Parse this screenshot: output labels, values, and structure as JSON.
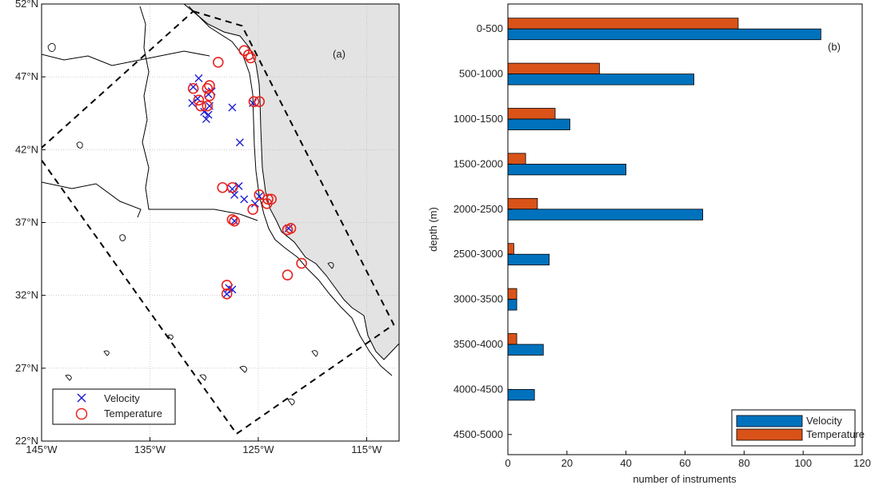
{
  "colors": {
    "velocity": "#0072BD",
    "temperature": "#D95319",
    "land": "#e3e3e3",
    "grid": "#b0b0b0",
    "marker_velocity": "#1f1fd6",
    "marker_temperature": "#e8231f"
  },
  "chart_data": [
    {
      "type": "scatter",
      "panel_label": "(a)",
      "xlim": [
        -145,
        -112
      ],
      "ylim": [
        22,
        52
      ],
      "x_ticks": [
        -145,
        -135,
        -125,
        -115
      ],
      "x_tick_labels": [
        "145°W",
        "135°W",
        "125°W",
        "115°W"
      ],
      "y_ticks": [
        22,
        27,
        32,
        37,
        42,
        47,
        52
      ],
      "y_tick_labels": [
        "22°N",
        "27°N",
        "32°N",
        "37°N",
        "42°N",
        "47°N",
        "52°N"
      ],
      "grid": true,
      "legend_position": "bottom-left",
      "domain_boundary": [
        [
          -131,
          51.5
        ],
        [
          -126.5,
          50.5
        ],
        [
          -112.5,
          30
        ],
        [
          -127,
          22.5
        ],
        [
          -145.5,
          41.8
        ]
      ],
      "series": [
        {
          "name": "Velocity",
          "marker": "x",
          "points": [
            [
              -131,
              46.3
            ],
            [
              -130.5,
              46.9
            ],
            [
              -130.6,
              45.5
            ],
            [
              -131.1,
              45.2
            ],
            [
              -130,
              44.6
            ],
            [
              -129.8,
              44.1
            ],
            [
              -129.6,
              44.4
            ],
            [
              -129.5,
              45.0
            ],
            [
              -129.6,
              45.8
            ],
            [
              -129.3,
              46.0
            ],
            [
              -127.4,
              44.9
            ],
            [
              -126.7,
              42.5
            ],
            [
              -126.3,
              38.6
            ],
            [
              -126.8,
              39.5
            ],
            [
              -127.4,
              39.3
            ],
            [
              -127.2,
              38.9
            ],
            [
              -127.2,
              37.1
            ],
            [
              -125.3,
              38.3
            ],
            [
              -124.9,
              38.8
            ],
            [
              -125.5,
              45.2
            ],
            [
              -127.7,
              32.5
            ],
            [
              -127.4,
              32.4
            ],
            [
              -127.9,
              32.1
            ],
            [
              -122.2,
              36.6
            ]
          ]
        },
        {
          "name": "Temperature",
          "marker": "o",
          "points": [
            [
              -128.7,
              48.0
            ],
            [
              -126.3,
              48.8
            ],
            [
              -125.9,
              48.5
            ],
            [
              -125.7,
              48.3
            ],
            [
              -129.5,
              46.4
            ],
            [
              -129.7,
              46.2
            ],
            [
              -129.5,
              45.7
            ],
            [
              -131,
              46.2
            ],
            [
              -130.5,
              45.4
            ],
            [
              -130.3,
              45.0
            ],
            [
              -129.7,
              45.0
            ],
            [
              -125.4,
              45.3
            ],
            [
              -124.9,
              45.3
            ],
            [
              -128.3,
              39.4
            ],
            [
              -127.4,
              39.4
            ],
            [
              -127.2,
              37.1
            ],
            [
              -127.4,
              37.2
            ],
            [
              -125.5,
              37.9
            ],
            [
              -124.9,
              38.9
            ],
            [
              -124.1,
              38.6
            ],
            [
              -123.8,
              38.6
            ],
            [
              -124.2,
              38.3
            ],
            [
              -122.3,
              36.5
            ],
            [
              -122.0,
              36.6
            ],
            [
              -122.3,
              33.4
            ],
            [
              -121.0,
              34.2
            ],
            [
              -127.9,
              32.7
            ],
            [
              -127.9,
              32.1
            ]
          ]
        }
      ]
    },
    {
      "type": "bar",
      "orientation": "horizontal",
      "panel_label": "(b)",
      "ylabel": "depth (m)",
      "xlabel": "number of instruments",
      "xlim": [
        0,
        120
      ],
      "x_ticks": [
        0,
        20,
        40,
        60,
        80,
        100,
        120
      ],
      "categories": [
        "0-500",
        "500-1000",
        "1000-1500",
        "1500-2000",
        "2000-2500",
        "2500-3000",
        "3000-3500",
        "3500-4000",
        "4000-4500",
        "4500-5000"
      ],
      "series": [
        {
          "name": "Velocity",
          "values": [
            106,
            63,
            21,
            40,
            66,
            14,
            3,
            12,
            9,
            0
          ]
        },
        {
          "name": "Temperature",
          "values": [
            78,
            31,
            16,
            6,
            10,
            2,
            3,
            3,
            0,
            0
          ]
        }
      ],
      "legend_position": "bottom-right",
      "grid": false
    }
  ]
}
